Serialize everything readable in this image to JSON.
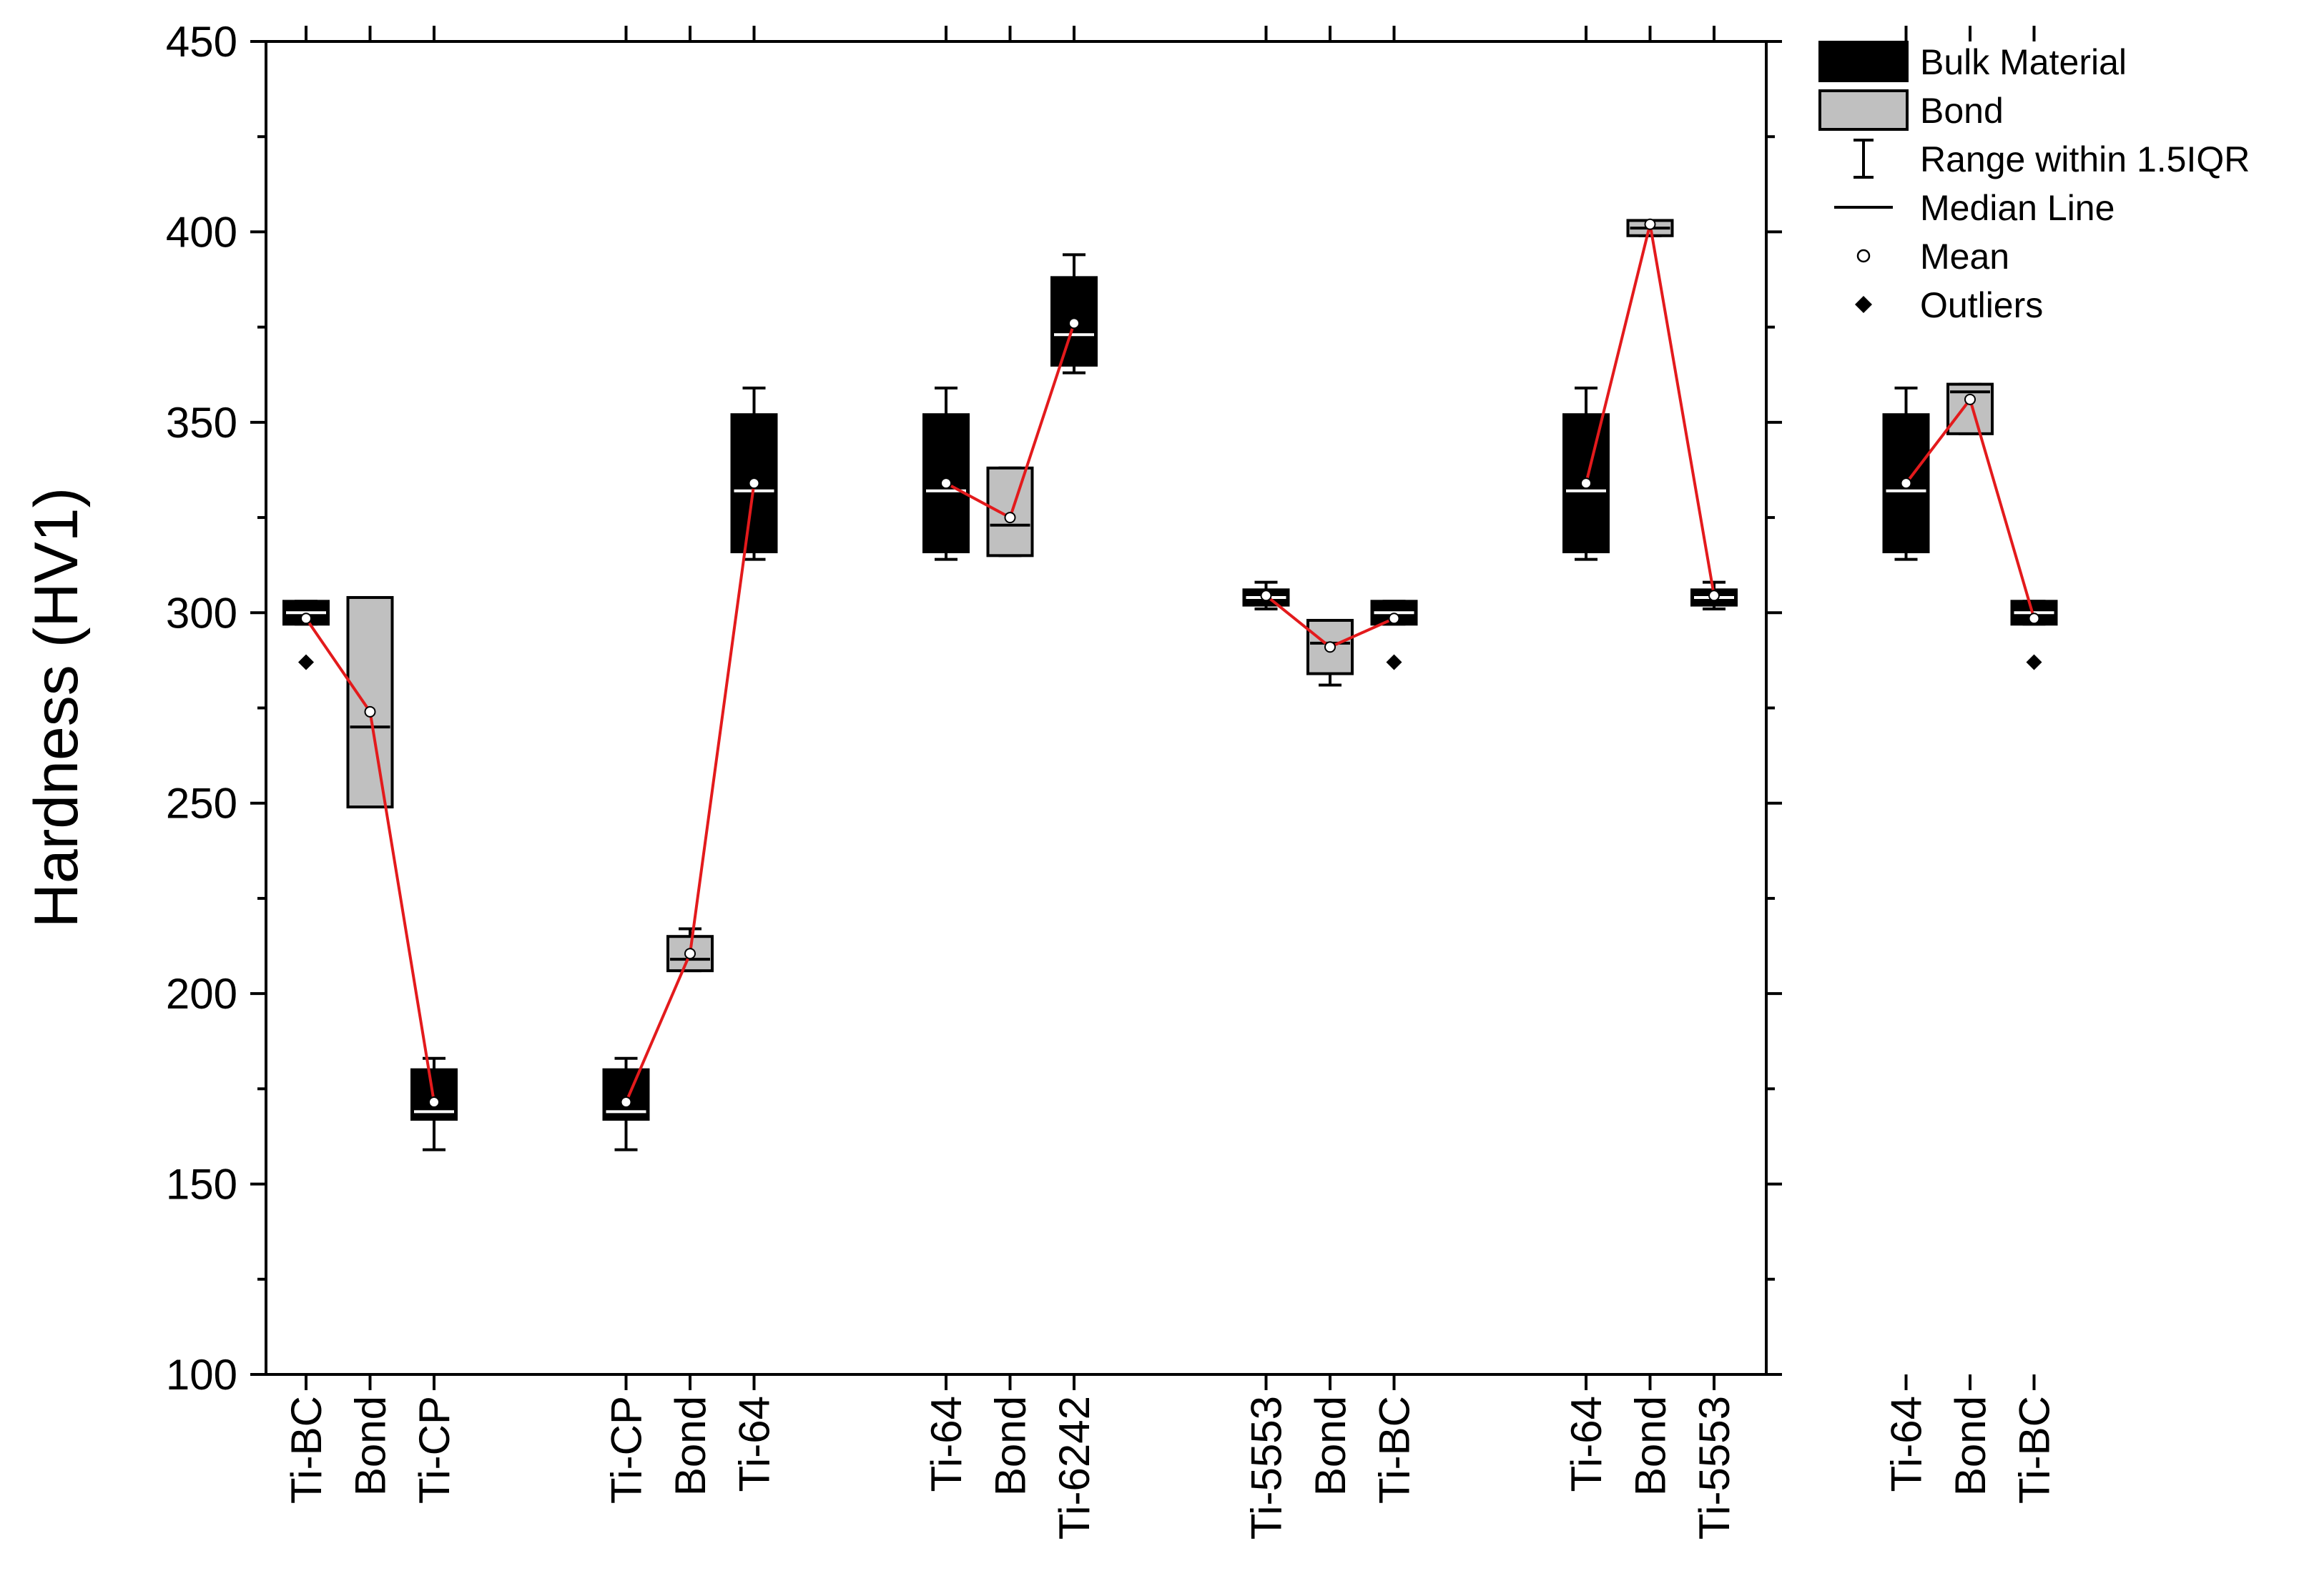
{
  "chart_data": {
    "type": "box",
    "ylabel": "Hardness (HV1)",
    "xlabel": "",
    "ylim": [
      100,
      450
    ],
    "yticks": [
      100,
      150,
      200,
      250,
      300,
      350,
      400,
      450
    ],
    "legend": {
      "position": "outside-right",
      "entries": [
        {
          "key": "bulk",
          "label": "Bulk Material"
        },
        {
          "key": "bond",
          "label": "Bond"
        },
        {
          "key": "range",
          "label": "Range within 1.5IQR"
        },
        {
          "key": "median",
          "label": "Median Line"
        },
        {
          "key": "mean",
          "label": "Mean"
        },
        {
          "key": "outliers",
          "label": "Outliers"
        }
      ]
    },
    "colors": {
      "bulk": "#000000",
      "bond": "#c0c0c0",
      "mean_line": "#e31a1c"
    },
    "groups": [
      {
        "boxes": [
          {
            "label": "Ti-BC",
            "kind": "bulk",
            "q1": 297,
            "median": 300,
            "q3": 303,
            "wlow": 297,
            "whigh": 303,
            "mean": 298.5,
            "outliers": [
              287
            ]
          },
          {
            "label": "Bond",
            "kind": "bond",
            "q1": 249,
            "median": 270,
            "q3": 304,
            "wlow": 249,
            "whigh": 304,
            "mean": 274,
            "outliers": []
          },
          {
            "label": "Ti-CP",
            "kind": "bulk",
            "q1": 167,
            "median": 169,
            "q3": 180,
            "wlow": 159,
            "whigh": 183,
            "mean": 171.5,
            "outliers": []
          }
        ]
      },
      {
        "boxes": [
          {
            "label": "Ti-CP",
            "kind": "bulk",
            "q1": 167,
            "median": 169,
            "q3": 180,
            "wlow": 159,
            "whigh": 183,
            "mean": 171.5,
            "outliers": []
          },
          {
            "label": "Bond",
            "kind": "bond",
            "q1": 206,
            "median": 209,
            "q3": 215,
            "wlow": 206,
            "whigh": 217,
            "mean": 210.5,
            "outliers": []
          },
          {
            "label": "Ti-64",
            "kind": "bulk",
            "q1": 316,
            "median": 332,
            "q3": 352,
            "wlow": 314,
            "whigh": 359,
            "mean": 334,
            "outliers": []
          }
        ]
      },
      {
        "boxes": [
          {
            "label": "Ti-64",
            "kind": "bulk",
            "q1": 316,
            "median": 332,
            "q3": 352,
            "wlow": 314,
            "whigh": 359,
            "mean": 334,
            "outliers": []
          },
          {
            "label": "Bond",
            "kind": "bond",
            "q1": 315,
            "median": 323,
            "q3": 338,
            "wlow": 315,
            "whigh": 338,
            "mean": 325,
            "outliers": []
          },
          {
            "label": "Ti-6242",
            "kind": "bulk",
            "q1": 365,
            "median": 373,
            "q3": 388,
            "wlow": 363,
            "whigh": 394,
            "mean": 376,
            "outliers": []
          }
        ]
      },
      {
        "boxes": [
          {
            "label": "Ti-5553",
            "kind": "bulk",
            "q1": 302,
            "median": 304,
            "q3": 306,
            "wlow": 301,
            "whigh": 308,
            "mean": 304.5,
            "outliers": []
          },
          {
            "label": "Bond",
            "kind": "bond",
            "q1": 284,
            "median": 292,
            "q3": 298,
            "wlow": 281,
            "whigh": 298,
            "mean": 291,
            "outliers": []
          },
          {
            "label": "Ti-BC",
            "kind": "bulk",
            "q1": 297,
            "median": 300,
            "q3": 303,
            "wlow": 297,
            "whigh": 303,
            "mean": 298.5,
            "outliers": [
              287
            ]
          }
        ]
      },
      {
        "boxes": [
          {
            "label": "Ti-64",
            "kind": "bulk",
            "q1": 316,
            "median": 332,
            "q3": 352,
            "wlow": 314,
            "whigh": 359,
            "mean": 334,
            "outliers": []
          },
          {
            "label": "Bond",
            "kind": "bond",
            "q1": 399,
            "median": 401,
            "q3": 403,
            "wlow": 399,
            "whigh": 403,
            "mean": 402,
            "outliers": []
          },
          {
            "label": "Ti-5553",
            "kind": "bulk",
            "q1": 302,
            "median": 304,
            "q3": 306,
            "wlow": 301,
            "whigh": 308,
            "mean": 304.5,
            "outliers": []
          }
        ]
      },
      {
        "boxes": [
          {
            "label": "Ti-64",
            "kind": "bulk",
            "q1": 316,
            "median": 332,
            "q3": 352,
            "wlow": 314,
            "whigh": 359,
            "mean": 334,
            "outliers": []
          },
          {
            "label": "Bond",
            "kind": "bond",
            "q1": 347,
            "median": 358,
            "q3": 360,
            "wlow": 347,
            "whigh": 360,
            "mean": 356,
            "outliers": []
          },
          {
            "label": "Ti-BC",
            "kind": "bulk",
            "q1": 297,
            "median": 300,
            "q3": 303,
            "wlow": 297,
            "whigh": 303,
            "mean": 298.5,
            "outliers": [
              287
            ]
          }
        ]
      }
    ]
  }
}
